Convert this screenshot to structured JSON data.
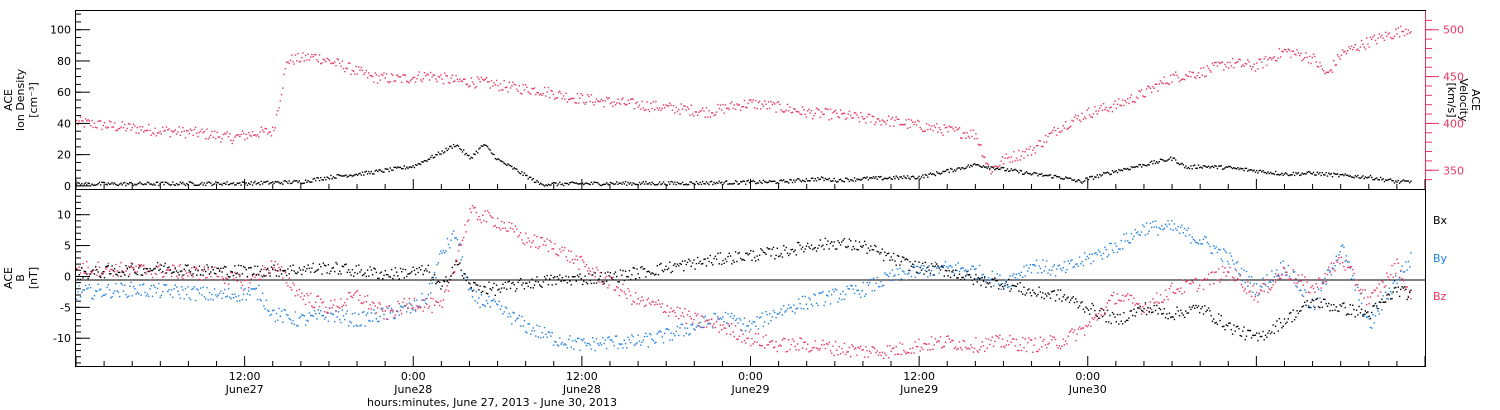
{
  "chart_data": [
    {
      "type": "scatter",
      "title": "",
      "ylabel_left": [
        "ACE",
        "Ion Density",
        "[cm⁻³]"
      ],
      "ylabel_right": [
        "ACE",
        "Velocity",
        "[km/s]"
      ],
      "y_left_ticks": [
        "0",
        "20",
        "40",
        "60",
        "80",
        "100"
      ],
      "y_left_range": [
        -2,
        112
      ],
      "y_right_ticks": [
        "350",
        "400",
        "450",
        "500"
      ],
      "y_right_range": [
        330,
        520
      ],
      "x_hours_range": [
        0,
        96
      ],
      "colors": {
        "density": "#000000",
        "velocity": "#e8365f"
      },
      "series": [
        {
          "name": "",
          "axis": "left",
          "color": "#000000",
          "points": [
            [
              0,
              1.5
            ],
            [
              6,
              1.8
            ],
            [
              12,
              2
            ],
            [
              16,
              3
            ],
            [
              18,
              6
            ],
            [
              21,
              9
            ],
            [
              24,
              13
            ],
            [
              26,
              22
            ],
            [
              27,
              27
            ],
            [
              28,
              18
            ],
            [
              29,
              27
            ],
            [
              30,
              17
            ],
            [
              31,
              12
            ],
            [
              33,
              1.5
            ],
            [
              38,
              2
            ],
            [
              42,
              2
            ],
            [
              46,
              2.5
            ],
            [
              50,
              3
            ],
            [
              53,
              5
            ],
            [
              54,
              4
            ],
            [
              56,
              5
            ],
            [
              60,
              6
            ],
            [
              62,
              10
            ],
            [
              64,
              14
            ],
            [
              66,
              11
            ],
            [
              68,
              8
            ],
            [
              70,
              6
            ],
            [
              71.5,
              3
            ],
            [
              72,
              5
            ],
            [
              74,
              10
            ],
            [
              76,
              14
            ],
            [
              78,
              18
            ],
            [
              79,
              12
            ],
            [
              80,
              13
            ],
            [
              82,
              12
            ],
            [
              84,
              10
            ],
            [
              86,
              8
            ],
            [
              88,
              8.5
            ],
            [
              90,
              7
            ],
            [
              92,
              6
            ],
            [
              94,
              3
            ],
            [
              95,
              3
            ]
          ]
        },
        {
          "name": "",
          "axis": "right",
          "color": "#e8365f",
          "points": [
            [
              0,
              402
            ],
            [
              3,
              397
            ],
            [
              6,
              393
            ],
            [
              9,
              390
            ],
            [
              11,
              385
            ],
            [
              13,
              391
            ],
            [
              14,
              392
            ],
            [
              15,
              468
            ],
            [
              17,
              472
            ],
            [
              19,
              462
            ],
            [
              21,
              450
            ],
            [
              23,
              448
            ],
            [
              25,
              452
            ],
            [
              27,
              446
            ],
            [
              29,
              444
            ],
            [
              31,
              439
            ],
            [
              33,
              436
            ],
            [
              35,
              429
            ],
            [
              37,
              425
            ],
            [
              39,
              422
            ],
            [
              41,
              419
            ],
            [
              43,
              416
            ],
            [
              45,
              413
            ],
            [
              47,
              420
            ],
            [
              48,
              422
            ],
            [
              50,
              418
            ],
            [
              52,
              412
            ],
            [
              54,
              410
            ],
            [
              56,
              406
            ],
            [
              58,
              403
            ],
            [
              60,
              398
            ],
            [
              62,
              393
            ],
            [
              64,
              389
            ],
            [
              65,
              350
            ],
            [
              66,
              362
            ],
            [
              68,
              372
            ],
            [
              70,
              397
            ],
            [
              72,
              412
            ],
            [
              74,
              420
            ],
            [
              76,
              433
            ],
            [
              78,
              450
            ],
            [
              80,
              455
            ],
            [
              82,
              465
            ],
            [
              84,
              462
            ],
            [
              86,
              478
            ],
            [
              88,
              470
            ],
            [
              89,
              452
            ],
            [
              90,
              475
            ],
            [
              92,
              488
            ],
            [
              94,
              498
            ],
            [
              95,
              503
            ]
          ]
        }
      ]
    },
    {
      "type": "scatter",
      "title": "",
      "ylabel": [
        "ACE",
        "B",
        "[nT]"
      ],
      "y_ticks": [
        "-10",
        "-5",
        "0",
        "5",
        "10"
      ],
      "y_range": [
        -14.5,
        14
      ],
      "x_hours_range": [
        0,
        96
      ],
      "legend": [
        "Bx",
        "By",
        "Bz"
      ],
      "legend_placement": "right",
      "colors": {
        "Bx": "#000000",
        "By": "#1f7fe0",
        "Bz": "#e8365f"
      },
      "series": [
        {
          "name": "Bx",
          "color": "#000000",
          "points": [
            [
              0,
              0.5
            ],
            [
              6,
              1.5
            ],
            [
              10,
              1
            ],
            [
              14,
              1
            ],
            [
              18,
              1.5
            ],
            [
              22,
              0.5
            ],
            [
              25,
              1
            ],
            [
              26,
              -2
            ],
            [
              27,
              2.5
            ],
            [
              28,
              -1.5
            ],
            [
              30,
              -2
            ],
            [
              32,
              -1
            ],
            [
              34,
              -0.5
            ],
            [
              38,
              0
            ],
            [
              42,
              1.5
            ],
            [
              46,
              3
            ],
            [
              48,
              3.5
            ],
            [
              50,
              4
            ],
            [
              52,
              5
            ],
            [
              54,
              5.5
            ],
            [
              56,
              5
            ],
            [
              58,
              3
            ],
            [
              60,
              1.5
            ],
            [
              62,
              1
            ],
            [
              64,
              -0.5
            ],
            [
              66,
              -1
            ],
            [
              68,
              -2.5
            ],
            [
              70,
              -3
            ],
            [
              72,
              -5
            ],
            [
              74,
              -7
            ],
            [
              76,
              -5
            ],
            [
              78,
              -6
            ],
            [
              80,
              -5
            ],
            [
              82,
              -8
            ],
            [
              84,
              -10
            ],
            [
              86,
              -7
            ],
            [
              88,
              -4
            ],
            [
              90,
              -5
            ],
            [
              92,
              -6
            ],
            [
              94,
              -2
            ],
            [
              95,
              -3
            ]
          ]
        },
        {
          "name": "By",
          "color": "#1f7fe0",
          "points": [
            [
              0,
              -2.5
            ],
            [
              4,
              -2
            ],
            [
              8,
              -2.5
            ],
            [
              10,
              -3
            ],
            [
              13,
              -2.5
            ],
            [
              14,
              -6
            ],
            [
              16,
              -7
            ],
            [
              18,
              -6
            ],
            [
              20,
              -7
            ],
            [
              22,
              -6
            ],
            [
              24,
              -5
            ],
            [
              25,
              -3
            ],
            [
              26,
              4
            ],
            [
              27,
              7
            ],
            [
              28,
              -3
            ],
            [
              30,
              -5
            ],
            [
              32,
              -8
            ],
            [
              34,
              -10
            ],
            [
              36,
              -11
            ],
            [
              38,
              -10.5
            ],
            [
              40,
              -10.5
            ],
            [
              42,
              -9.5
            ],
            [
              44,
              -8
            ],
            [
              46,
              -6.5
            ],
            [
              48,
              -8
            ],
            [
              50,
              -5.5
            ],
            [
              52,
              -4
            ],
            [
              54,
              -3
            ],
            [
              56,
              -2
            ],
            [
              58,
              0
            ],
            [
              60,
              1
            ],
            [
              62,
              1.5
            ],
            [
              64,
              1
            ],
            [
              66,
              -1
            ],
            [
              68,
              2
            ],
            [
              70,
              1
            ],
            [
              72,
              3
            ],
            [
              74,
              5
            ],
            [
              76,
              8
            ],
            [
              78,
              8
            ],
            [
              80,
              6
            ],
            [
              82,
              3
            ],
            [
              84,
              -2
            ],
            [
              86,
              2
            ],
            [
              88,
              -5
            ],
            [
              90,
              5
            ],
            [
              92,
              -8
            ],
            [
              94,
              0
            ],
            [
              95,
              3
            ]
          ]
        },
        {
          "name": "Bz",
          "color": "#e8365f",
          "points": [
            [
              0,
              1.5
            ],
            [
              6,
              1
            ],
            [
              10,
              0.5
            ],
            [
              12,
              -1
            ],
            [
              14,
              2
            ],
            [
              16,
              -3
            ],
            [
              18,
              -5
            ],
            [
              20,
              -3
            ],
            [
              22,
              -6
            ],
            [
              24,
              -4
            ],
            [
              26,
              -5
            ],
            [
              28,
              10.5
            ],
            [
              30,
              9
            ],
            [
              32,
              6
            ],
            [
              34,
              5
            ],
            [
              36,
              2
            ],
            [
              38,
              -1
            ],
            [
              40,
              -4
            ],
            [
              42,
              -5
            ],
            [
              44,
              -7
            ],
            [
              46,
              -8
            ],
            [
              48,
              -10
            ],
            [
              50,
              -11
            ],
            [
              52,
              -11
            ],
            [
              54,
              -11.5
            ],
            [
              56,
              -12
            ],
            [
              58,
              -12
            ],
            [
              60,
              -11
            ],
            [
              62,
              -10.5
            ],
            [
              64,
              -11
            ],
            [
              66,
              -10.5
            ],
            [
              68,
              -11
            ],
            [
              70,
              -10.5
            ],
            [
              72,
              -8
            ],
            [
              74,
              -3
            ],
            [
              76,
              -5
            ],
            [
              78,
              -2
            ],
            [
              80,
              -1
            ],
            [
              82,
              1
            ],
            [
              84,
              -3
            ],
            [
              86,
              1
            ],
            [
              88,
              -2
            ],
            [
              90,
              3
            ],
            [
              92,
              -4
            ],
            [
              94,
              2
            ],
            [
              95,
              -4
            ]
          ]
        }
      ]
    }
  ],
  "x_axis": {
    "ticks": [
      {
        "hours": 12,
        "time": "12:00",
        "date": "June27"
      },
      {
        "hours": 24,
        "time": "0:00",
        "date": "June28"
      },
      {
        "hours": 36,
        "time": "12:00",
        "date": "June28"
      },
      {
        "hours": 48,
        "time": "0:00",
        "date": "June29"
      },
      {
        "hours": 60,
        "time": "12:00",
        "date": "June29"
      },
      {
        "hours": 72,
        "time": "0:00",
        "date": "June30"
      }
    ],
    "label": "hours:minutes, June 27, 2013 - June 30, 2013"
  }
}
